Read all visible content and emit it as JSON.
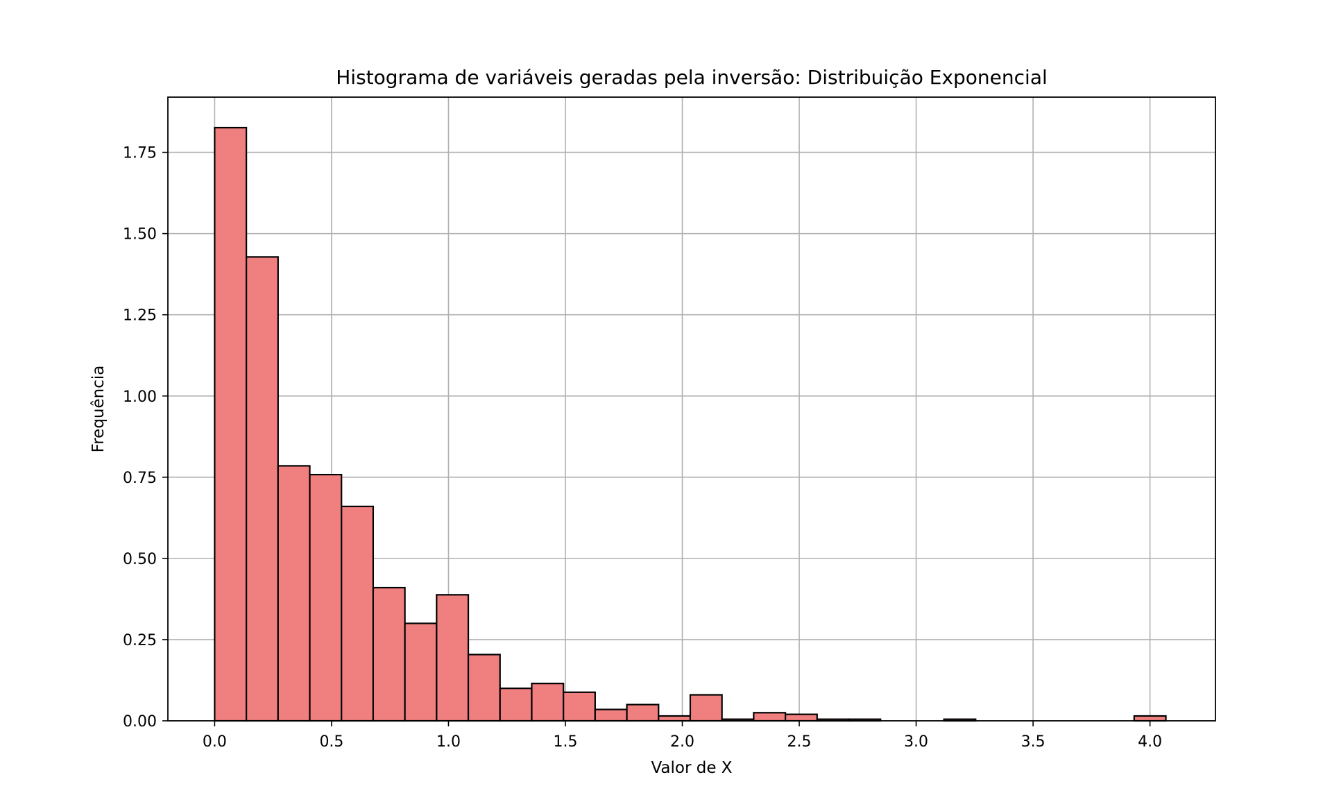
{
  "chart_data": {
    "type": "bar",
    "title": "Histograma de variáveis geradas pela inversão: Distribuição Exponencial",
    "xlabel": "Valor de X",
    "ylabel": "Frequência",
    "xlim": [
      -0.2,
      4.28
    ],
    "ylim": [
      0,
      1.92
    ],
    "grid": true,
    "legend": "none",
    "bin_start": 0.0,
    "bin_width": 0.1356,
    "values": [
      1.826,
      1.428,
      0.785,
      0.758,
      0.66,
      0.41,
      0.3,
      0.388,
      0.204,
      0.1,
      0.115,
      0.088,
      0.035,
      0.05,
      0.015,
      0.08,
      0.005,
      0.025,
      0.02,
      0.005,
      0.005,
      0.0,
      0.0,
      0.005,
      0.0,
      0.0,
      0.0,
      0.0,
      0.0,
      0.015
    ],
    "x_ticks": [
      {
        "value": 0.0,
        "label": "0.0"
      },
      {
        "value": 0.5,
        "label": "0.5"
      },
      {
        "value": 1.0,
        "label": "1.0"
      },
      {
        "value": 1.5,
        "label": "1.5"
      },
      {
        "value": 2.0,
        "label": "2.0"
      },
      {
        "value": 2.5,
        "label": "2.5"
      },
      {
        "value": 3.0,
        "label": "3.0"
      },
      {
        "value": 3.5,
        "label": "3.5"
      },
      {
        "value": 4.0,
        "label": "4.0"
      }
    ],
    "y_ticks": [
      {
        "value": 0.0,
        "label": "0.00"
      },
      {
        "value": 0.25,
        "label": "0.25"
      },
      {
        "value": 0.5,
        "label": "0.50"
      },
      {
        "value": 0.75,
        "label": "0.75"
      },
      {
        "value": 1.0,
        "label": "1.00"
      },
      {
        "value": 1.25,
        "label": "1.25"
      },
      {
        "value": 1.5,
        "label": "1.50"
      },
      {
        "value": 1.75,
        "label": "1.75"
      }
    ],
    "colors": {
      "bar_fill": "#f08080",
      "bar_edge": "#000000",
      "grid": "#b0b0b0"
    }
  }
}
